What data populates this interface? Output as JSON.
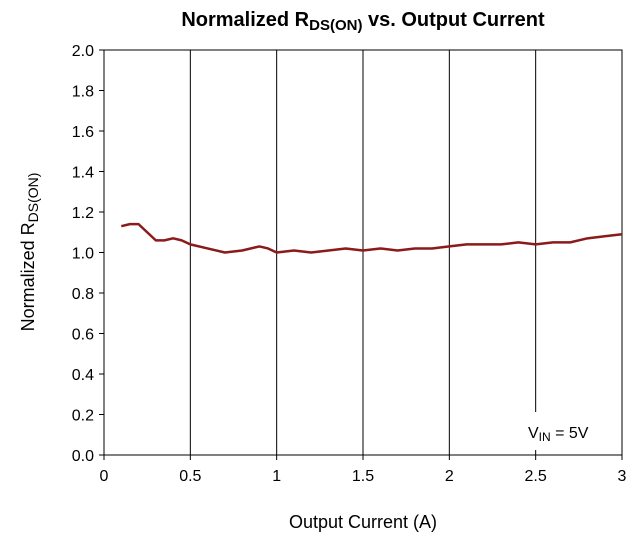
{
  "chart_data": {
    "type": "line",
    "title_parts": [
      "Normalized R",
      "DS(ON)",
      " vs. Output Current"
    ],
    "y_label_parts": [
      "Normalized R",
      "DS(ON)"
    ],
    "x_label": "Output Current (A)",
    "annotation_parts": [
      "V",
      "IN",
      " = 5V"
    ],
    "xlim": [
      0,
      3
    ],
    "xticks": [
      0,
      0.5,
      1,
      1.5,
      2,
      2.5,
      3
    ],
    "ylim": [
      0,
      2
    ],
    "yticks": [
      {
        "value": 0,
        "label": "0.0"
      },
      {
        "value": 0.2,
        "label": "0.2"
      },
      {
        "value": 0.4,
        "label": "0.4"
      },
      {
        "value": 0.6,
        "label": "0.6"
      },
      {
        "value": 0.8,
        "label": "0.8"
      },
      {
        "value": 1,
        "label": "1.0"
      },
      {
        "value": 1.2,
        "label": "1.2"
      },
      {
        "value": 1.4,
        "label": "1.4"
      },
      {
        "value": 1.6,
        "label": "1.6"
      },
      {
        "value": 1.8,
        "label": "1.8"
      },
      {
        "value": 2,
        "label": "2.0"
      }
    ],
    "grid": "x",
    "x": [
      0.1,
      0.15,
      0.2,
      0.25,
      0.3,
      0.35,
      0.4,
      0.45,
      0.5,
      0.6,
      0.7,
      0.8,
      0.9,
      0.95,
      1.0,
      1.1,
      1.2,
      1.3,
      1.4,
      1.5,
      1.6,
      1.7,
      1.8,
      1.9,
      2.0,
      2.1,
      2.2,
      2.3,
      2.4,
      2.5,
      2.6,
      2.7,
      2.8,
      2.9,
      3.0
    ],
    "series": [
      {
        "color": "#8b1a1a",
        "values": [
          1.13,
          1.14,
          1.14,
          1.1,
          1.06,
          1.06,
          1.07,
          1.06,
          1.04,
          1.02,
          1.0,
          1.01,
          1.03,
          1.02,
          1.0,
          1.01,
          1.0,
          1.01,
          1.02,
          1.01,
          1.02,
          1.01,
          1.02,
          1.02,
          1.03,
          1.04,
          1.04,
          1.04,
          1.05,
          1.04,
          1.05,
          1.05,
          1.07,
          1.08,
          1.09
        ]
      }
    ]
  }
}
